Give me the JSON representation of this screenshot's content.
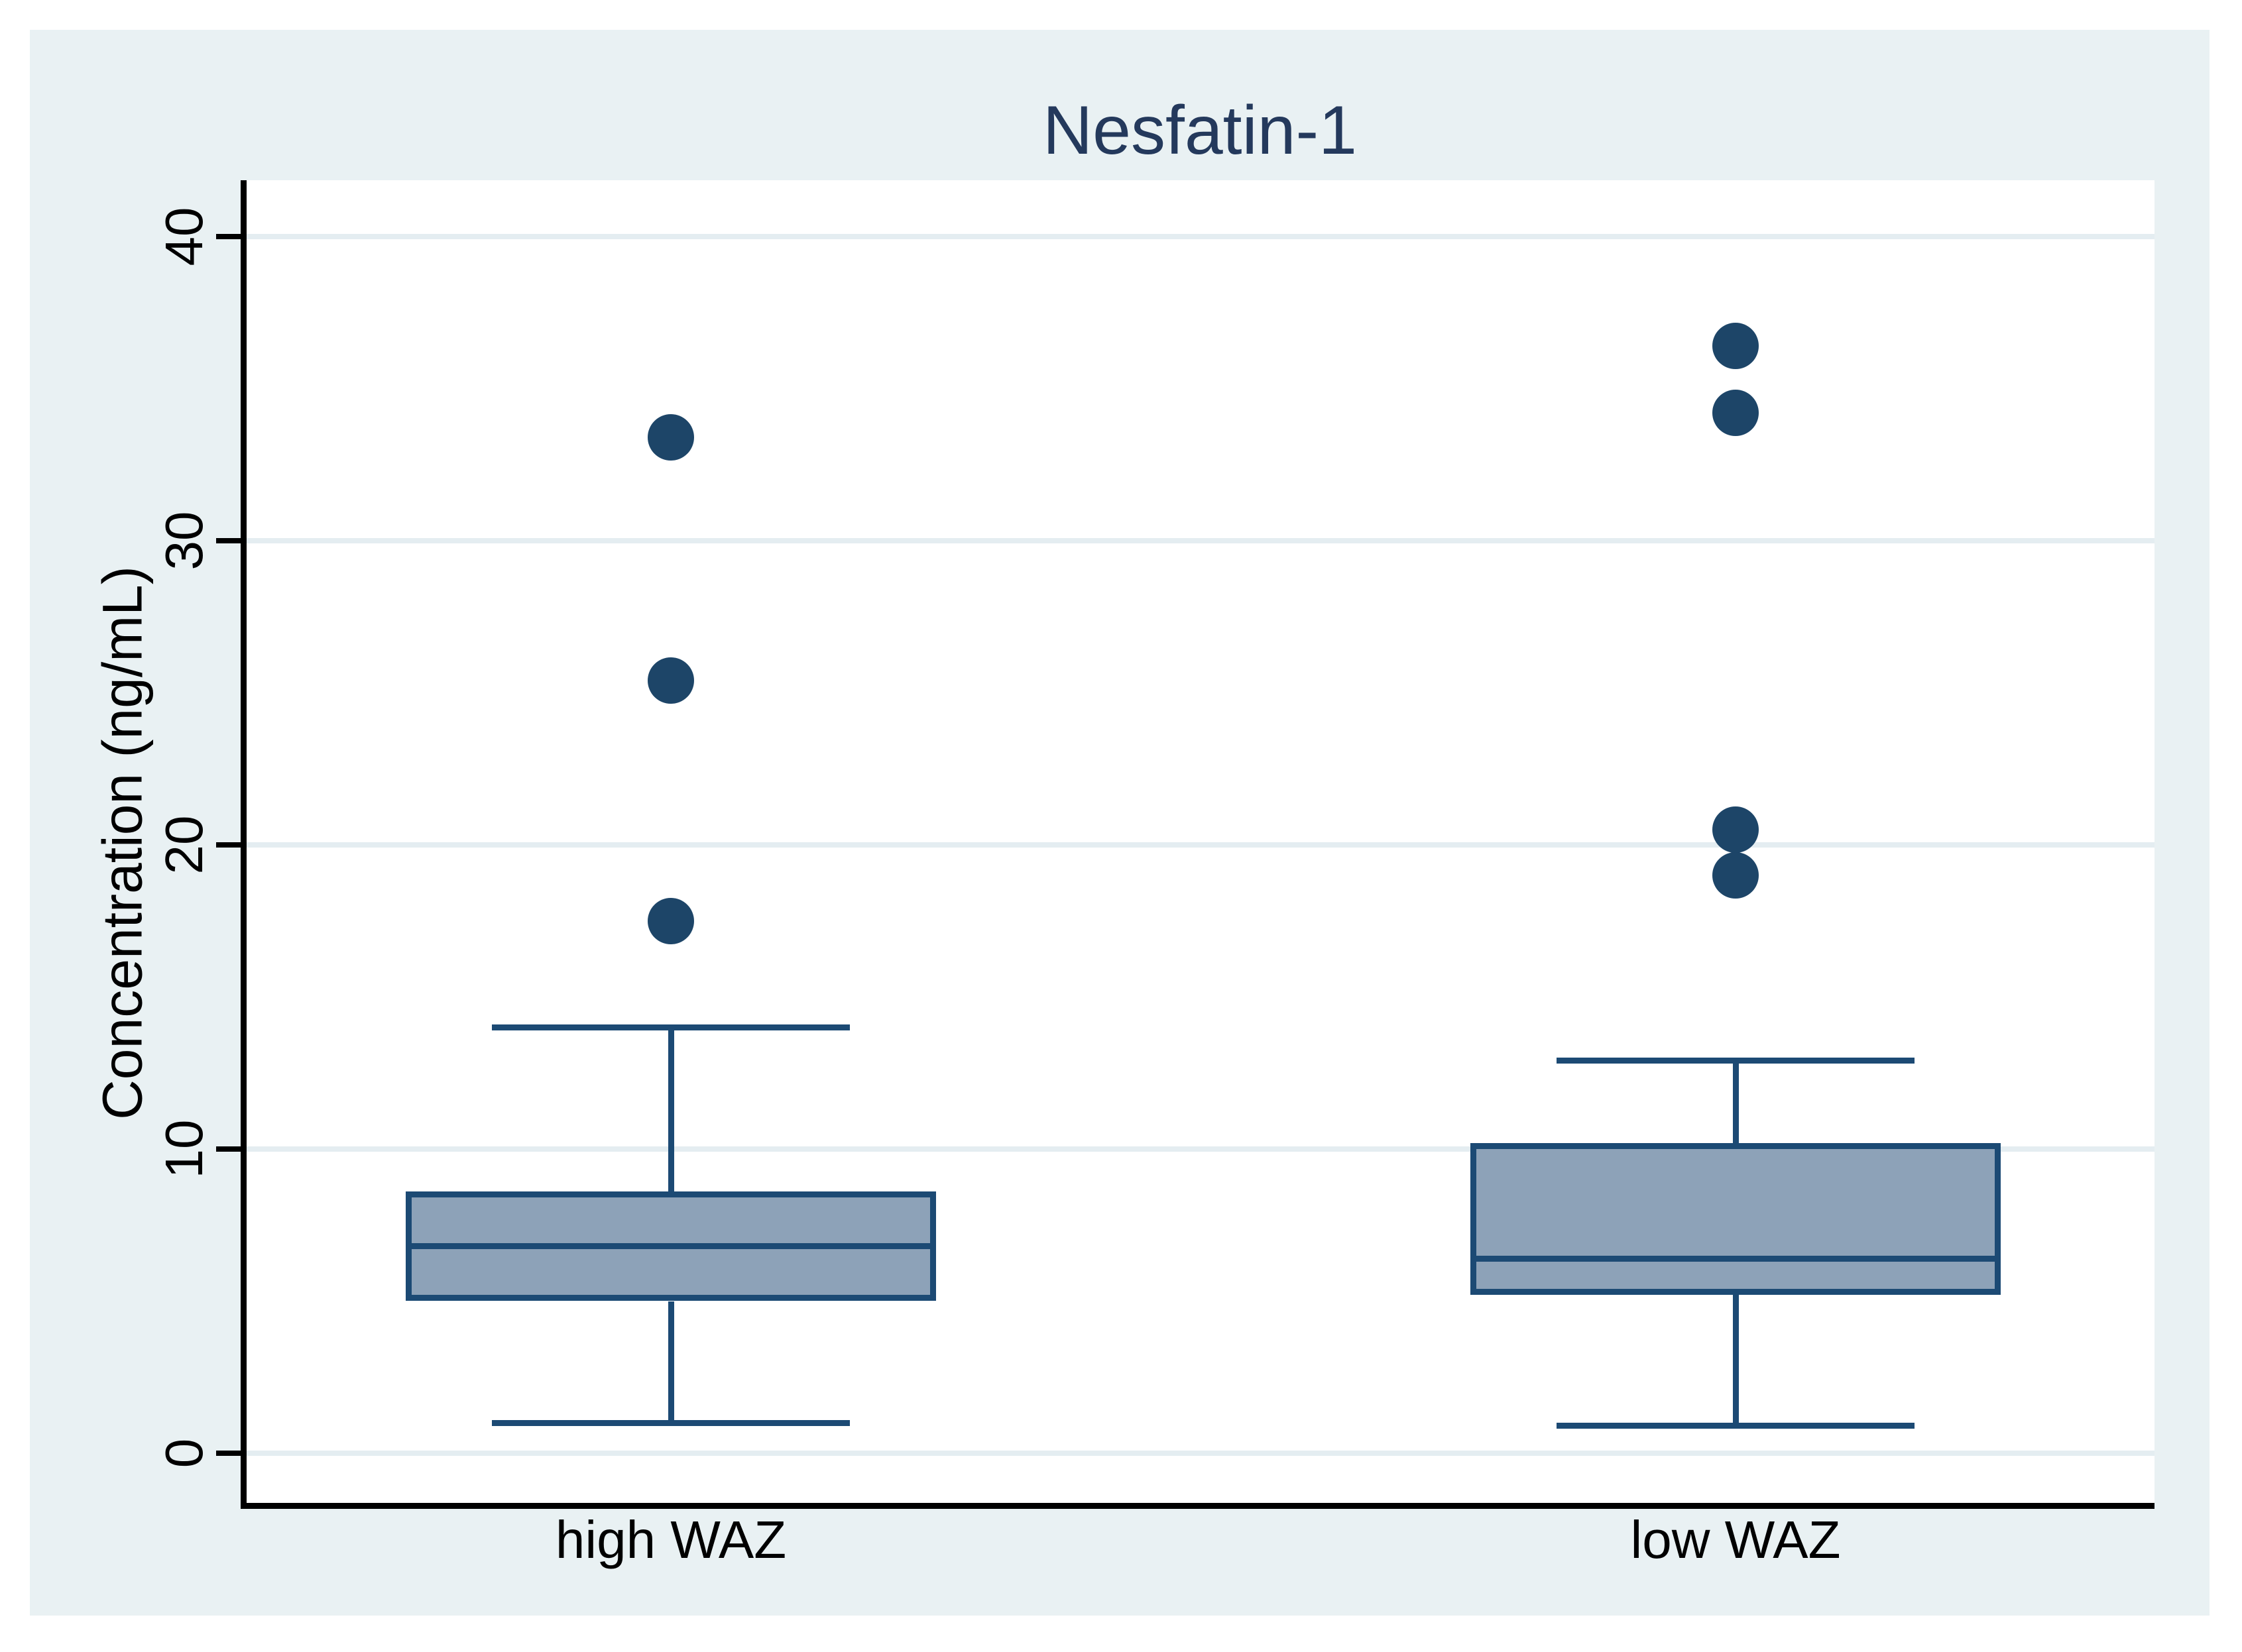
{
  "figure": {
    "title": "Nesfatin-1"
  },
  "colors": {
    "title": "#24395c",
    "canvas_bg": "#e9f1f3",
    "plot_bg": "#ffffff",
    "gridline": "#e4edf1",
    "axis": "#000000",
    "label_text": "#000000",
    "box_fill": "#8da2b8",
    "box_stroke": "#1c4a74",
    "outlier": "#1d4568"
  },
  "chart_data": {
    "type": "box",
    "title": "Nesfatin-1",
    "xlabel": "",
    "ylabel": "Concentration (ng/mL)",
    "categories": [
      "high WAZ",
      "low WAZ"
    ],
    "y_ticks": [
      0,
      10,
      20,
      30,
      40
    ],
    "ylim": [
      -1.7,
      41.9
    ],
    "grid": true,
    "legend": "none",
    "series": [
      {
        "name": "high WAZ",
        "whisker_low": 1.0,
        "q1": 5.0,
        "median": 6.9,
        "q3": 8.6,
        "whisker_high": 14.0,
        "outliers": [
          17.5,
          25.4,
          33.4
        ]
      },
      {
        "name": "low WAZ",
        "whisker_low": 0.9,
        "q1": 5.2,
        "median": 6.5,
        "q3": 10.2,
        "whisker_high": 12.9,
        "outliers": [
          19.0,
          20.5,
          34.2,
          36.4
        ]
      }
    ]
  }
}
